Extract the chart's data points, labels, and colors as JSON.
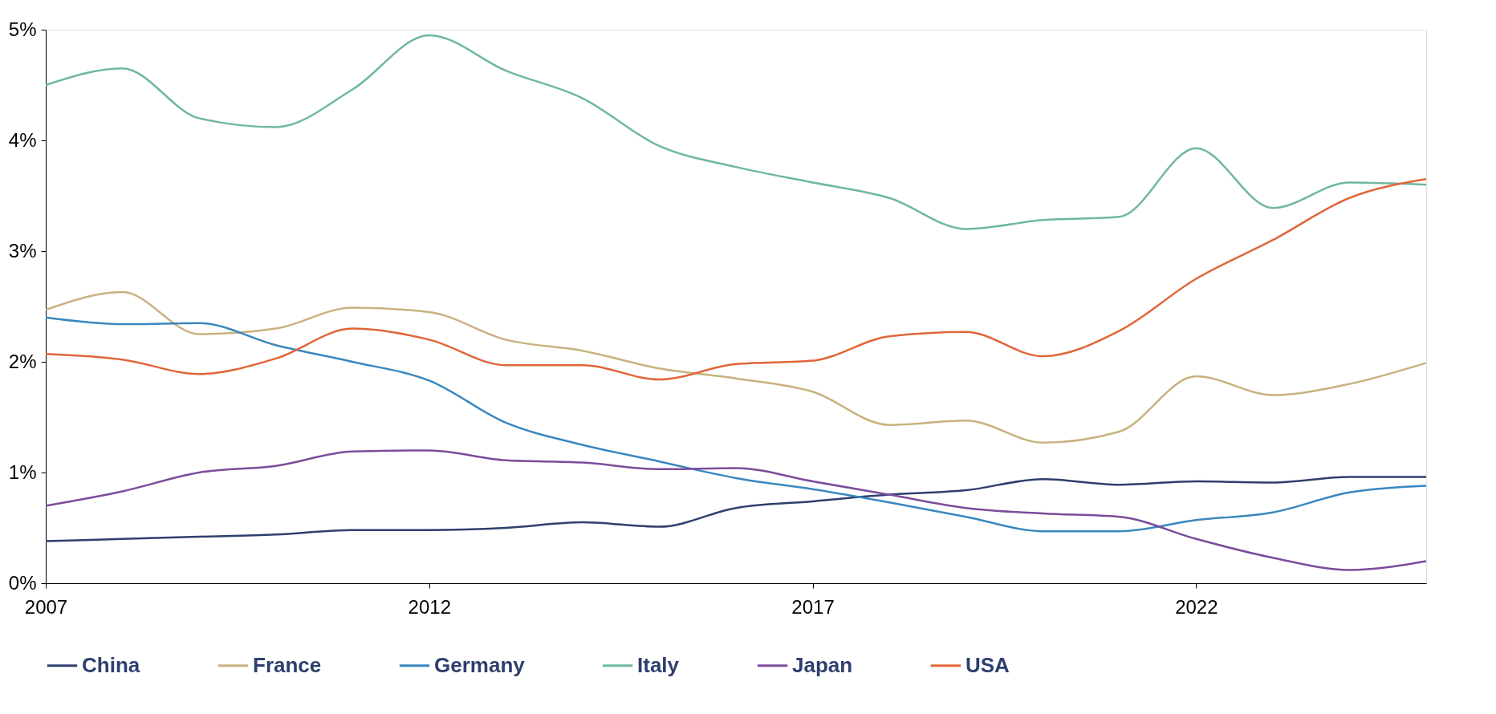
{
  "chart_data": {
    "type": "line",
    "x": [
      2007,
      2008,
      2009,
      2010,
      2011,
      2012,
      2013,
      2014,
      2015,
      2016,
      2017,
      2018,
      2019,
      2020,
      2021,
      2022,
      2023,
      2024,
      2025
    ],
    "series": [
      {
        "name": "China",
        "color": "#2e3f6e",
        "values": [
          0.38,
          0.4,
          0.42,
          0.44,
          0.48,
          0.48,
          0.5,
          0.55,
          0.51,
          0.68,
          0.74,
          0.8,
          0.84,
          0.94,
          0.89,
          0.92,
          0.91,
          0.96,
          0.96
        ]
      },
      {
        "name": "France",
        "color": "#c8b27e",
        "values": [
          2.47,
          2.63,
          2.25,
          2.3,
          2.49,
          2.45,
          2.2,
          2.1,
          1.94,
          1.85,
          1.73,
          1.43,
          1.47,
          1.27,
          1.37,
          1.87,
          1.7,
          1.8,
          1.99
        ]
      },
      {
        "name": "Germany",
        "color": "#3a87bf",
        "values": [
          2.4,
          2.34,
          2.35,
          2.15,
          2.0,
          1.83,
          1.45,
          1.25,
          1.1,
          0.95,
          0.85,
          0.73,
          0.6,
          0.47,
          0.47,
          0.57,
          0.64,
          0.82,
          0.88
        ]
      },
      {
        "name": "Italy",
        "color": "#6fb8a0",
        "values": [
          4.5,
          4.65,
          4.2,
          4.12,
          4.46,
          4.95,
          4.63,
          4.38,
          3.95,
          3.76,
          3.62,
          3.48,
          3.2,
          3.28,
          3.31,
          3.93,
          3.39,
          3.62,
          3.6
        ]
      },
      {
        "name": "Japan",
        "color": "#7b4c9b",
        "values": [
          0.7,
          0.83,
          1.0,
          1.06,
          1.19,
          1.2,
          1.11,
          1.09,
          1.03,
          1.04,
          0.92,
          0.8,
          0.68,
          0.63,
          0.6,
          0.4,
          0.23,
          0.12,
          0.2
        ]
      },
      {
        "name": "USA",
        "color": "#e0663a",
        "values": [
          2.07,
          2.02,
          1.89,
          2.03,
          2.3,
          2.2,
          1.97,
          1.97,
          1.84,
          1.98,
          2.01,
          2.23,
          2.27,
          2.05,
          2.28,
          2.75,
          3.1,
          3.48,
          3.65
        ]
      }
    ],
    "xlim": [
      2007,
      2025
    ],
    "xticks": [
      2007,
      2012,
      2017,
      2022
    ],
    "ylim": [
      0,
      5
    ],
    "yticks": [
      {
        "value": 0,
        "label": "0%"
      },
      {
        "value": 1,
        "label": "1%"
      },
      {
        "value": 2,
        "label": "2%"
      },
      {
        "value": 3,
        "label": "3%"
      },
      {
        "value": 4,
        "label": "4%"
      },
      {
        "value": 5,
        "label": "5%"
      }
    ],
    "grid": false,
    "legend": "bottom",
    "line_style": "solid",
    "marker": "none"
  }
}
